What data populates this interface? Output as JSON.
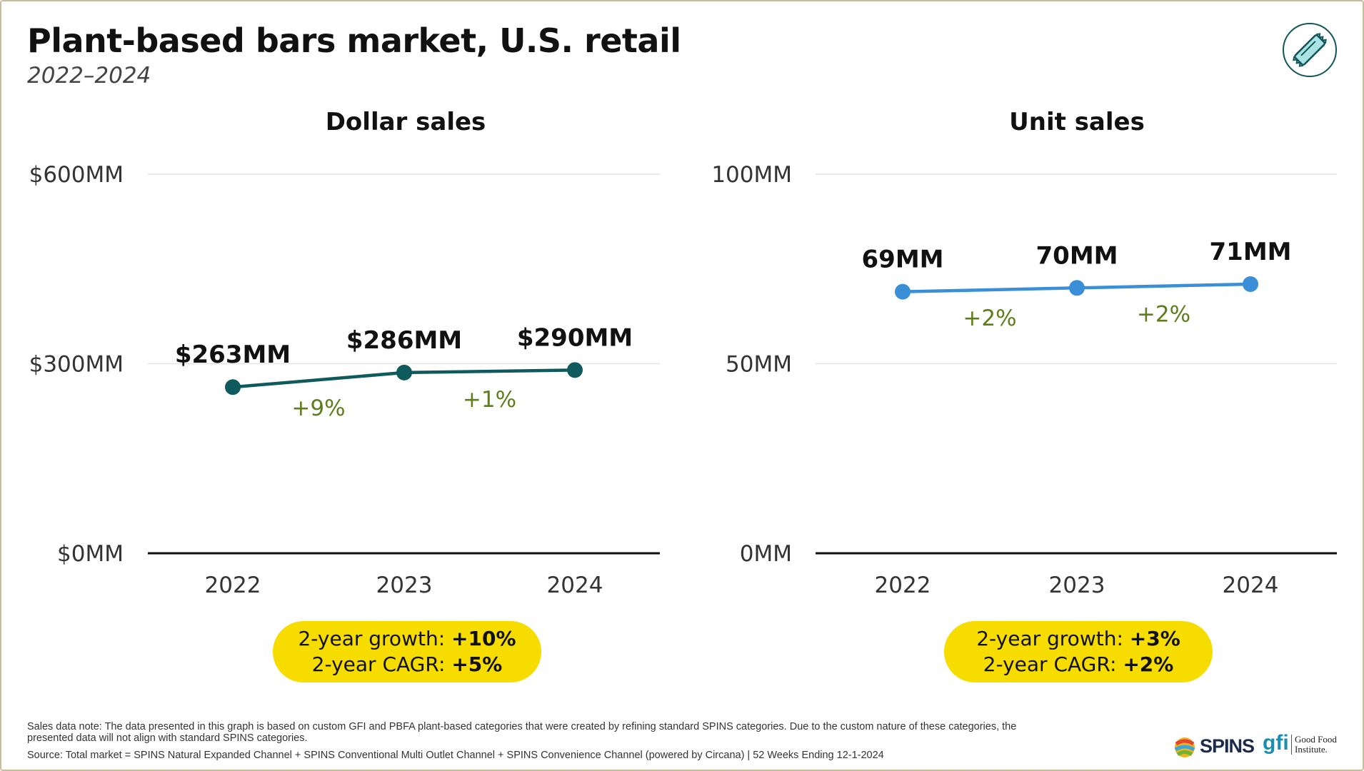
{
  "header": {
    "title": "Plant-based bars market, U.S. retail",
    "subtitle": "2022–2024",
    "badge_icon": "snack-bar-icon"
  },
  "colors": {
    "dollar_line": "#0f5a5c",
    "unit_line": "#3a8fd6",
    "growth_text": "#5f7d1a",
    "pill": "#f7dc00"
  },
  "chart_data": [
    {
      "type": "line",
      "title": "Dollar sales",
      "categories": [
        "2022",
        "2023",
        "2024"
      ],
      "values": [
        263,
        286,
        290
      ],
      "value_labels": [
        "$263MM",
        "$286MM",
        "$290MM"
      ],
      "growth_labels": [
        "+9%",
        "+1%"
      ],
      "ylim": [
        0,
        600
      ],
      "yticks": [
        0,
        300,
        600
      ],
      "ytick_labels": [
        "$0MM",
        "$300MM",
        "$600MM"
      ],
      "grid": true,
      "summary": {
        "growth_label": "2-year growth: ",
        "growth_value": "+10%",
        "cagr_label": "2-year CAGR: ",
        "cagr_value": "+5%"
      }
    },
    {
      "type": "line",
      "title": "Unit sales",
      "categories": [
        "2022",
        "2023",
        "2024"
      ],
      "values": [
        69,
        70,
        71
      ],
      "value_labels": [
        "69MM",
        "70MM",
        "71MM"
      ],
      "growth_labels": [
        "+2%",
        "+2%"
      ],
      "ylim": [
        0,
        100
      ],
      "yticks": [
        0,
        50,
        100
      ],
      "ytick_labels": [
        "0MM",
        "50MM",
        "100MM"
      ],
      "grid": true,
      "summary": {
        "growth_label": "2-year growth: ",
        "growth_value": "+3%",
        "cagr_label": "2-year CAGR: ",
        "cagr_value": "+2%"
      }
    }
  ],
  "footer": {
    "note": "Sales data note: The data presented in this graph is based on custom GFI and PBFA plant-based categories that were created by refining standard SPINS categories. Due to the custom nature of these categories, the presented data will not align with standard SPINS categories.",
    "source": "Source: Total market = SPINS Natural Expanded Channel + SPINS Conventional Multi Outlet Channel + SPINS Convenience Channel (powered by Circana) | 52 Weeks Ending 12-1-2024",
    "logo_spins": "SPINS",
    "logo_gfi_mark": "gfi",
    "logo_gfi_text": "Good Food Institute."
  }
}
